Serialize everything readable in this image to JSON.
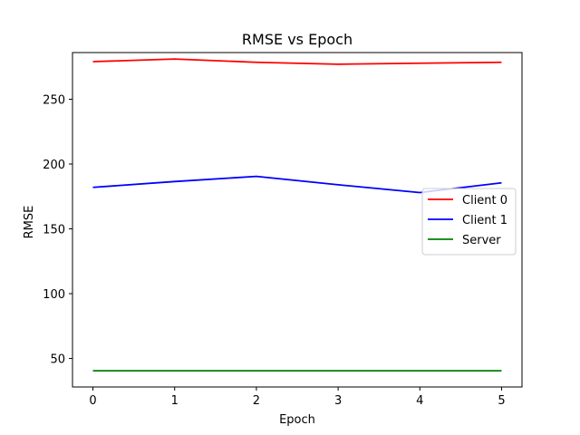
{
  "chart_data": {
    "type": "line",
    "title": "RMSE vs Epoch",
    "xlabel": "Epoch",
    "ylabel": "RMSE",
    "x": [
      0,
      1,
      2,
      3,
      4,
      5
    ],
    "xlim": [
      -0.25,
      5.25
    ],
    "ylim": [
      28,
      286
    ],
    "xticks": [
      0,
      1,
      2,
      3,
      4,
      5
    ],
    "yticks": [
      50,
      100,
      150,
      200,
      250
    ],
    "grid": false,
    "legend_position": "center-right",
    "series": [
      {
        "name": "Client 0",
        "color": "#ff0000",
        "values": [
          279,
          281,
          278.5,
          277,
          277.8,
          278.5
        ]
      },
      {
        "name": "Client 1",
        "color": "#0000ff",
        "values": [
          182,
          186.5,
          190.5,
          184,
          178,
          185.5
        ]
      },
      {
        "name": "Server",
        "color": "#008000",
        "values": [
          40.5,
          40.5,
          40.5,
          40.5,
          40.5,
          40.5
        ]
      }
    ]
  }
}
